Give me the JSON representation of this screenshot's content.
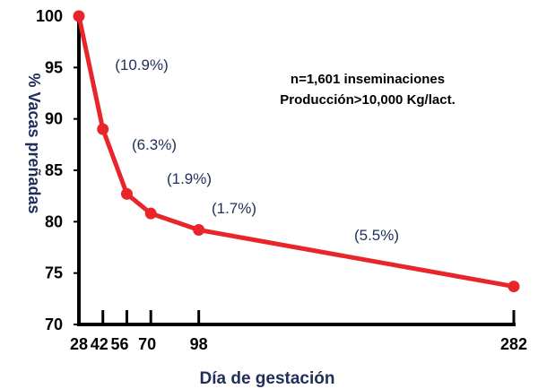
{
  "chart_data": {
    "type": "line",
    "x": [
      28,
      42,
      56,
      70,
      98,
      282
    ],
    "values": [
      100,
      89,
      82.7,
      80.8,
      79.2,
      73.7
    ],
    "xticks": [
      "28",
      "42",
      "56",
      "70",
      "98",
      "282"
    ],
    "yticks": [
      "70",
      "75",
      "80",
      "85",
      "90",
      "95",
      "100"
    ],
    "ylim": [
      70,
      100
    ],
    "xlabel": "Día de gestación",
    "ylabel": "% Vacas preñadas",
    "annotations": [
      "(10.9%)",
      "(6.3%)",
      "(1.9%)",
      "(1.7%)",
      "(5.5%)"
    ],
    "note_lines": [
      "n=1,601 inseminaciones",
      "Producción>10,000 Kg/lact."
    ],
    "grid": false,
    "colors": {
      "line": "#e8262a",
      "axis": "#000000",
      "text": "#1f2f5a"
    }
  }
}
